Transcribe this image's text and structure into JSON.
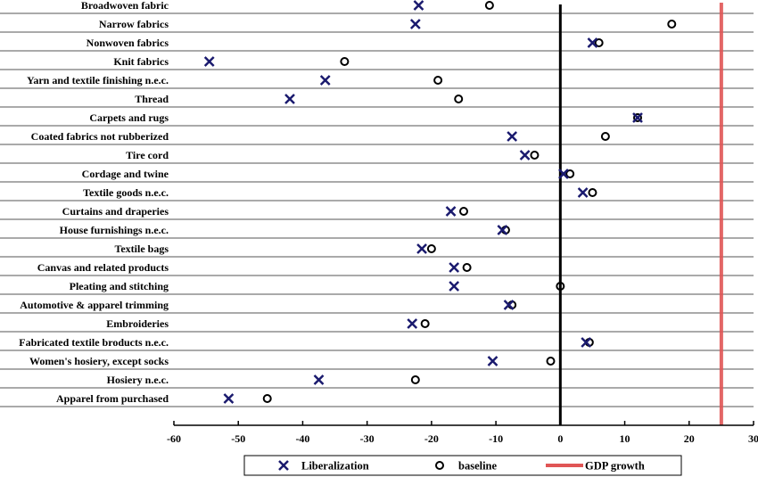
{
  "chart_data": {
    "type": "scatter",
    "title": "",
    "xlabel": "",
    "ylabel": "",
    "xlim": [
      -60,
      30
    ],
    "x_ticks": [
      "-60",
      "-50",
      "-40",
      "-30",
      "-20",
      "-10",
      "0",
      "10",
      "20",
      "30"
    ],
    "grid": "horizontal",
    "legend_position": "bottom",
    "categories": [
      "Broadwoven fabric",
      "Narrow fabrics",
      "Nonwoven fabrics",
      "Knit fabrics",
      "Yarn and textile finishing n.e.c.",
      "Thread",
      "Carpets and rugs",
      "Coated fabrics not rubberized",
      "Tire cord",
      "Cordage and twine",
      "Textile goods n.e.c.",
      "Curtains and draperies",
      "House furnishings n.e.c.",
      "Textile bags",
      "Canvas and related products",
      "Pleating and stitching",
      "Automotive & apparel trimming",
      "Embroideries",
      "Fabricated textile broducts n.e.c.",
      "Women's hosiery, except socks",
      "Hosiery n.e.c.",
      "Apparel from purchased"
    ],
    "series": [
      {
        "name": "Liberalization",
        "marker": "x",
        "color": "#1a1a6e",
        "values": [
          -22,
          -22.5,
          5,
          -54.5,
          -36.5,
          -42,
          12,
          -7.5,
          -5.5,
          0.5,
          3.5,
          -17,
          -9,
          -21.5,
          -16.5,
          -16.5,
          -8,
          -23,
          4,
          -10.5,
          -37.5,
          -51.5
        ]
      },
      {
        "name": "baseline",
        "marker": "o",
        "color": "#000000",
        "values": [
          -11,
          17.3,
          6,
          -33.5,
          -19,
          -15.8,
          12,
          7,
          -4,
          1.5,
          5,
          -15,
          -8.5,
          -20,
          -14.5,
          0,
          -7.5,
          -21,
          4.5,
          -1.5,
          -22.5,
          -45.5
        ]
      }
    ],
    "reference_lines": [
      {
        "name": "GDP growth",
        "x": 25,
        "color": "#e05555"
      }
    ],
    "zero_line_color": "#000000"
  }
}
